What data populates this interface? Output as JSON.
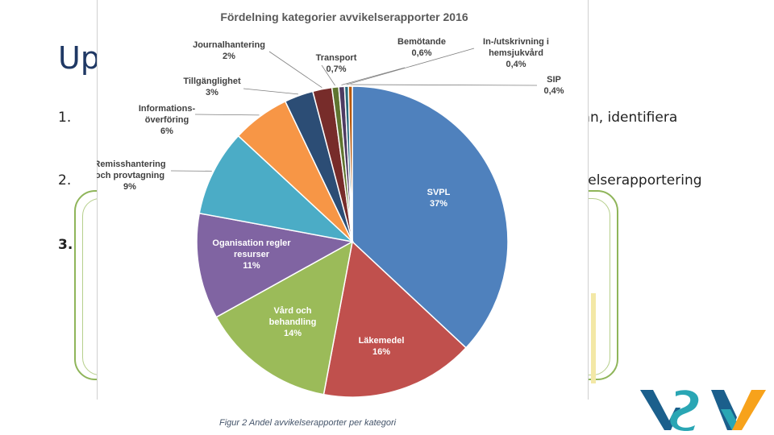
{
  "slide": {
    "title": "Up",
    "bullets": [
      {
        "number": "1.",
        "visible_tail": "rkan, identifiera"
      },
      {
        "number": "2.",
        "visible_tail": "kelserapportering"
      },
      {
        "number": "3."
      }
    ]
  },
  "caption": "Figur 2 Andel avvikelserapporter per kategori",
  "chart_data": {
    "type": "pie",
    "title": "Fördelning kategorier avvikelserapporter 2016",
    "unit": "%",
    "slices": [
      {
        "label": "SVPL",
        "label_lines": [
          "SVPL"
        ],
        "value": 37,
        "value_label": "37%",
        "color": "#4f81bd"
      },
      {
        "label": "Läkemedel",
        "label_lines": [
          "Läkemedel"
        ],
        "value": 16,
        "value_label": "16%",
        "color": "#c0504d"
      },
      {
        "label": "Vård och behandling",
        "label_lines": [
          "Vård och",
          "behandling"
        ],
        "value": 14,
        "value_label": "14%",
        "color": "#9bbb59"
      },
      {
        "label": "Organisation regler resurser",
        "label_lines": [
          "Oganisation regler",
          "resurser"
        ],
        "value": 11,
        "value_label": "11%",
        "color": "#8064a2"
      },
      {
        "label": "Remisshantering och provtagning",
        "label_lines": [
          "Remisshantering",
          "och provtagning"
        ],
        "value": 9,
        "value_label": "9%",
        "color": "#4bacc6"
      },
      {
        "label": "Informationsöverföring",
        "label_lines": [
          "Informations-",
          "överföring"
        ],
        "value": 6,
        "value_label": "6%",
        "color": "#f79646"
      },
      {
        "label": "Tillgänglighet",
        "label_lines": [
          "Tillgänglighet"
        ],
        "value": 3,
        "value_label": "3%",
        "color": "#2c4d75"
      },
      {
        "label": "Journalhantering",
        "label_lines": [
          "Journalhantering"
        ],
        "value": 2,
        "value_label": "2%",
        "color": "#772c2a"
      },
      {
        "label": "Transport",
        "label_lines": [
          "Transport"
        ],
        "value": 0.7,
        "value_label": "0,7%",
        "color": "#5f7530"
      },
      {
        "label": "Bemötande",
        "label_lines": [
          "Bemötande"
        ],
        "value": 0.6,
        "value_label": "0,6%",
        "color": "#4d3b62"
      },
      {
        "label": "In-/utskrivning i hemsjukvård",
        "label_lines": [
          "In-/utskrivning i",
          "hemsjukvård"
        ],
        "value": 0.4,
        "value_label": "0,4%",
        "color": "#276a7c"
      },
      {
        "label": "SIP",
        "label_lines": [
          "SIP"
        ],
        "value": 0.4,
        "value_label": "0,4%",
        "color": "#b65708"
      }
    ]
  },
  "colors": {
    "title": "#1f3864",
    "frame": "#8fb55a",
    "logo_blue": "#1b5f8c",
    "logo_teal": "#2aa6b4",
    "logo_orange": "#f7a21b"
  }
}
